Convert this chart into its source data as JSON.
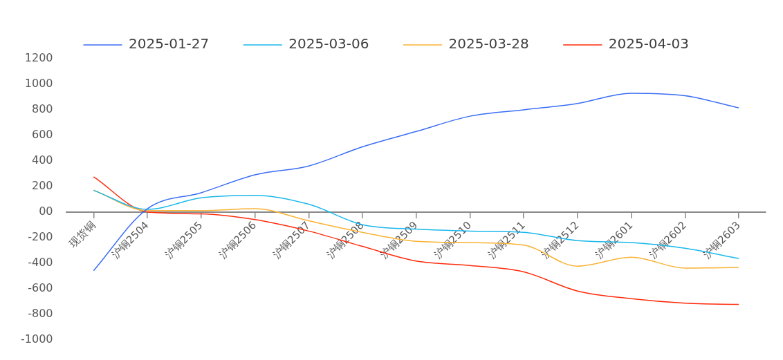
{
  "chart_data": {
    "type": "line",
    "categories": [
      "现货铜",
      "沪铜2504",
      "沪铜2505",
      "沪铜2506",
      "沪铜2507",
      "沪铜2508",
      "沪铜2509",
      "沪铜2510",
      "沪铜2511",
      "沪铜2512",
      "沪铜2601",
      "沪铜2602",
      "沪铜2603"
    ],
    "series": [
      {
        "name": "2025-01-27",
        "color": "#3b6ef5",
        "values": [
          -460,
          25,
          150,
          290,
          360,
          510,
          630,
          750,
          800,
          850,
          930,
          910,
          815
        ]
      },
      {
        "name": "2025-03-06",
        "color": "#1ab8ec",
        "values": [
          168,
          20,
          110,
          130,
          60,
          -100,
          -135,
          -150,
          -160,
          -225,
          -240,
          -285,
          -365
        ]
      },
      {
        "name": "2025-03-28",
        "color": "#f9b233",
        "values": [
          170,
          10,
          10,
          25,
          -70,
          -160,
          -230,
          -240,
          -260,
          -425,
          -355,
          -440,
          -435
        ]
      },
      {
        "name": "2025-04-03",
        "color": "#ff2a0a",
        "values": [
          275,
          0,
          -15,
          -60,
          -150,
          -270,
          -385,
          -420,
          -470,
          -620,
          -680,
          -715,
          -725
        ]
      }
    ],
    "ylim": [
      -1000,
      1200
    ],
    "yticks": [
      -1000,
      -800,
      -600,
      -400,
      -200,
      {
        "value": 0,
        "label": "00"
      },
      200,
      400,
      600,
      800,
      1000,
      1200
    ],
    "grid": false,
    "legend": "top",
    "marker": "none",
    "line_style": "solid"
  }
}
